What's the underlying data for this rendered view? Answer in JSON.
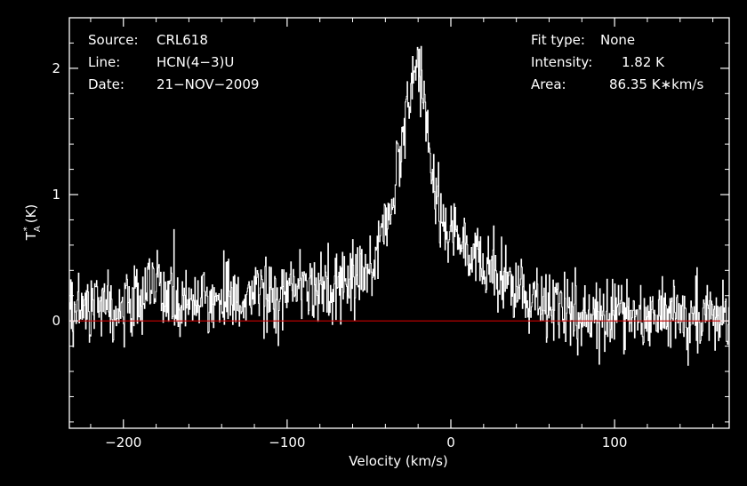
{
  "chart_data": {
    "type": "line",
    "title": "",
    "xlabel": "Velocity (km/s)",
    "ylabel": "T_A* (K)",
    "xlim": [
      -233,
      170
    ],
    "ylim": [
      -0.85,
      2.4
    ],
    "x_ticks": [
      -200,
      -100,
      0,
      100
    ],
    "x_tick_labels": [
      "−200",
      "−100",
      "0",
      "100"
    ],
    "y_ticks": [
      0,
      1,
      2
    ],
    "y_tick_labels": [
      "0",
      "1",
      "2"
    ],
    "grid": false,
    "baseline": 0,
    "series": [
      {
        "x": [
          -230,
          -220,
          -210,
          -200,
          -190,
          -180,
          -170,
          -160,
          -150,
          -140,
          -130,
          -120,
          -110,
          -100,
          -90,
          -80,
          -70,
          -60,
          -50,
          -45,
          -40,
          -35,
          -30,
          -25,
          -22,
          -20,
          -18,
          -15,
          -12,
          -10,
          -5,
          0,
          10,
          20,
          30,
          40,
          50,
          60,
          70,
          80,
          90,
          100,
          110,
          120,
          130,
          140,
          150,
          160,
          170
        ],
        "values": [
          0.1,
          0.12,
          0.1,
          0.14,
          0.18,
          0.24,
          0.2,
          0.18,
          0.2,
          0.15,
          0.18,
          0.22,
          0.16,
          0.25,
          0.22,
          0.25,
          0.28,
          0.35,
          0.45,
          0.55,
          0.75,
          1.05,
          1.45,
          1.75,
          2.0,
          2.05,
          1.9,
          1.55,
          1.2,
          1.0,
          0.8,
          0.65,
          0.55,
          0.45,
          0.32,
          0.22,
          0.15,
          0.1,
          0.08,
          0.06,
          0.05,
          0.06,
          0.07,
          0.05,
          0.05,
          0.06,
          0.05,
          0.04,
          0.05
        ],
        "noise_rms": 0.2,
        "color": "#ffffff"
      }
    ]
  },
  "info": {
    "source_label": "Source:",
    "source_value": "CRL618",
    "line_label": "Line:",
    "line_value": "HCN(4−3)U",
    "date_label": "Date:",
    "date_value": "21−NOV−2009",
    "fit_label": "Fit type:",
    "fit_value": "None",
    "intensity_label": "Intensity:",
    "intensity_value": "1.82 K",
    "area_label": "Area:",
    "area_value": "86.35 K∗km/s"
  },
  "colors": {
    "background": "#000000",
    "trace": "#ffffff",
    "baseline": "#cc0000",
    "axes": "#ffffff"
  }
}
